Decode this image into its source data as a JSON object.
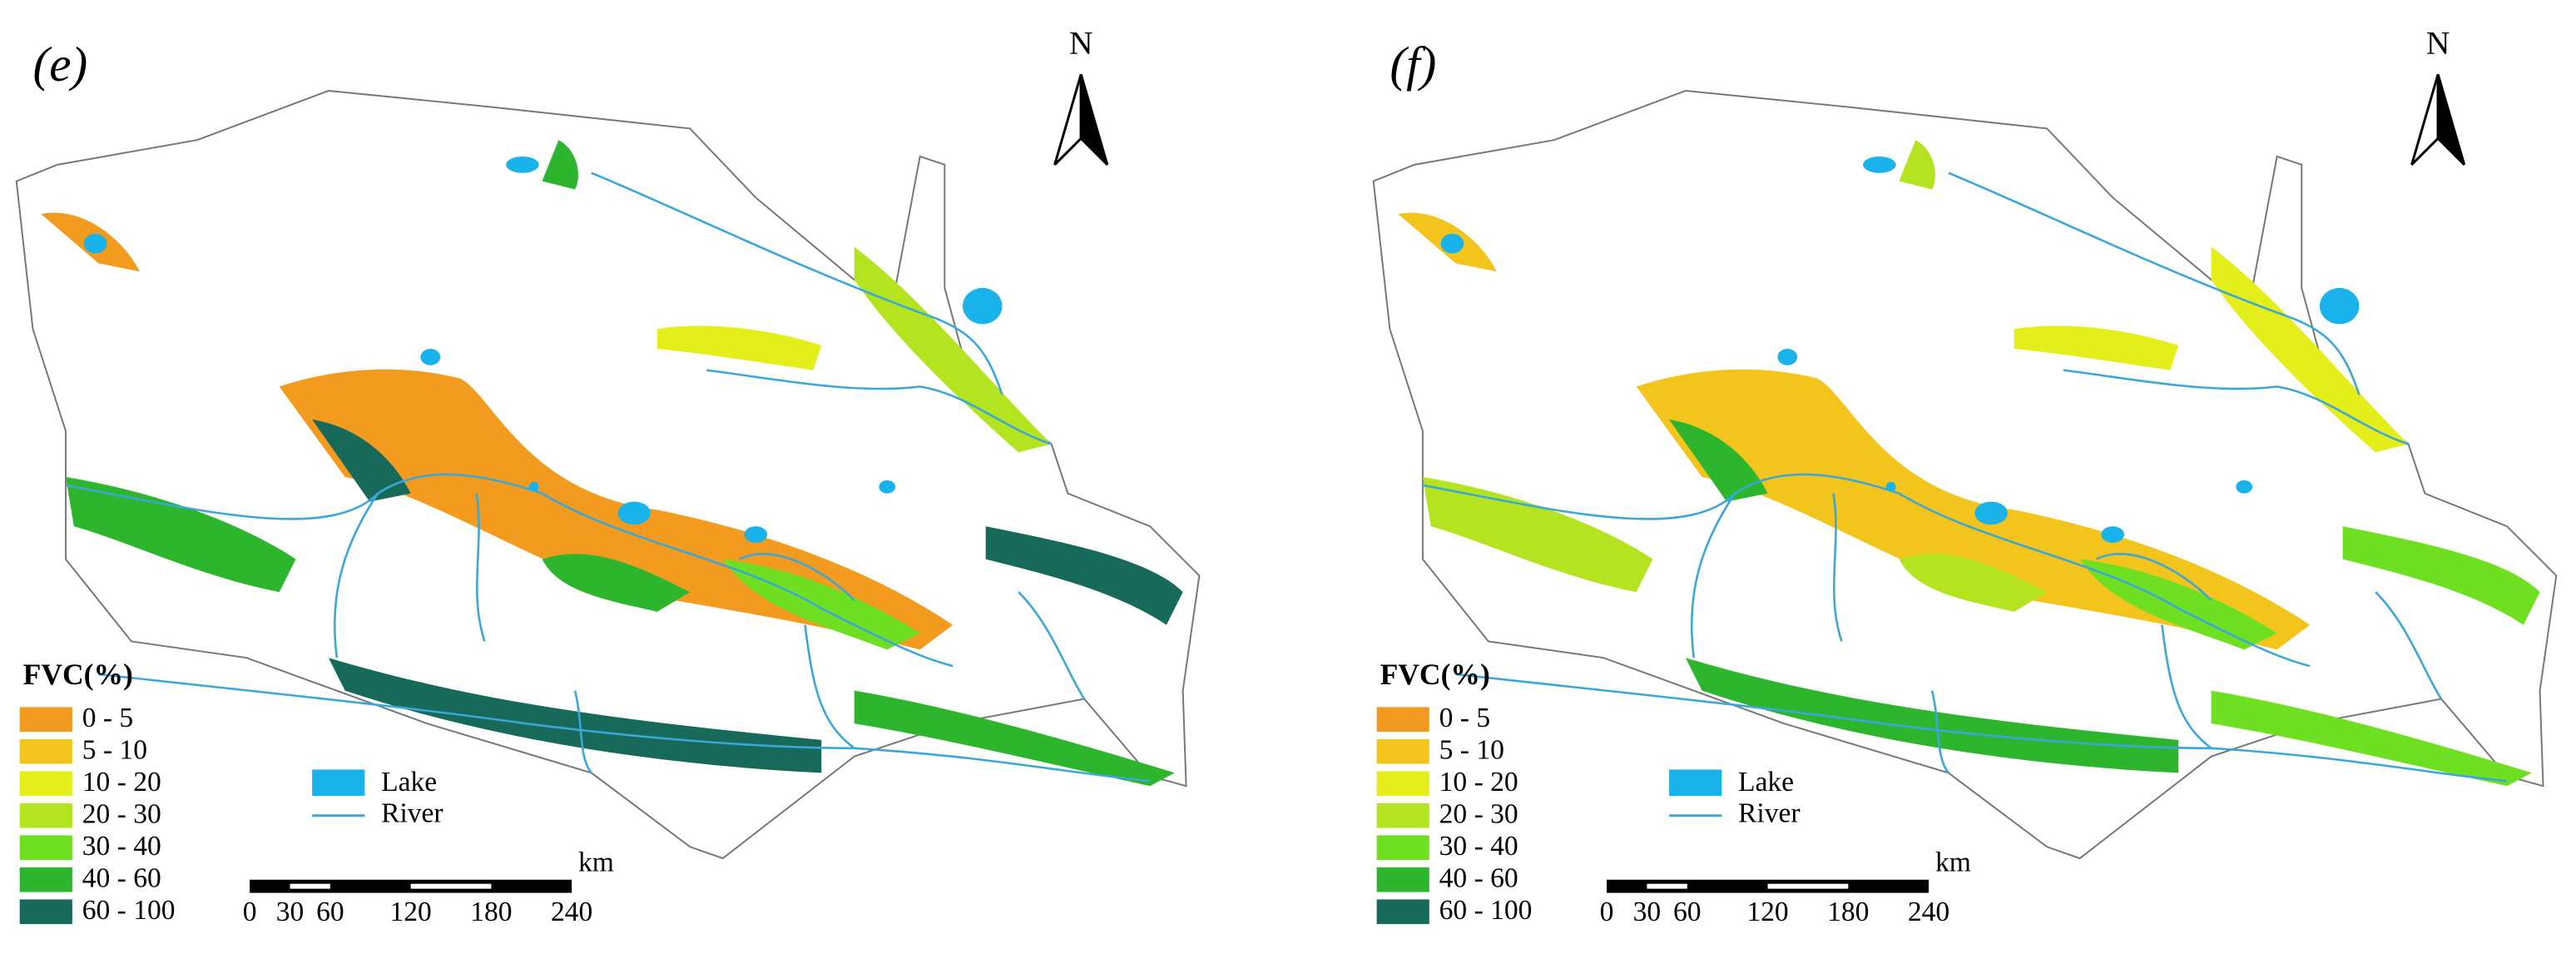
{
  "panels": [
    {
      "label": "(e)",
      "north": "N",
      "legend": {
        "title": "FVC(%)",
        "classes": [
          {
            "label": "0 - 5",
            "color": "#f29b1e"
          },
          {
            "label": "5 - 10",
            "color": "#f3c41c"
          },
          {
            "label": "10 - 20",
            "color": "#e3ee1a"
          },
          {
            "label": "20 - 30",
            "color": "#b3e41f"
          },
          {
            "label": "30 - 40",
            "color": "#6fe021"
          },
          {
            "label": "40 - 60",
            "color": "#2db52d"
          },
          {
            "label": "60 - 100",
            "color": "#17695a"
          }
        ]
      },
      "features": [
        {
          "label": "Lake",
          "color": "#1ab2ea"
        },
        {
          "label": "River",
          "color": "#3ba7d9"
        }
      ],
      "scale": {
        "unit": "km",
        "ticks": [
          0,
          30,
          60,
          120,
          180,
          240
        ]
      }
    },
    {
      "label": "(f)",
      "north": "N",
      "legend": {
        "title": "FVC(%)",
        "classes": [
          {
            "label": "0 - 5",
            "color": "#f29b1e"
          },
          {
            "label": "5 - 10",
            "color": "#f3c41c"
          },
          {
            "label": "10 - 20",
            "color": "#e3ee1a"
          },
          {
            "label": "20 - 30",
            "color": "#b3e41f"
          },
          {
            "label": "30 - 40",
            "color": "#6fe021"
          },
          {
            "label": "40 - 60",
            "color": "#2db52d"
          },
          {
            "label": "60 - 100",
            "color": "#17695a"
          }
        ]
      },
      "features": [
        {
          "label": "Lake",
          "color": "#1ab2ea"
        },
        {
          "label": "River",
          "color": "#3ba7d9"
        }
      ],
      "scale": {
        "unit": "km",
        "ticks": [
          0,
          30,
          60,
          120,
          180,
          240
        ]
      }
    }
  ]
}
